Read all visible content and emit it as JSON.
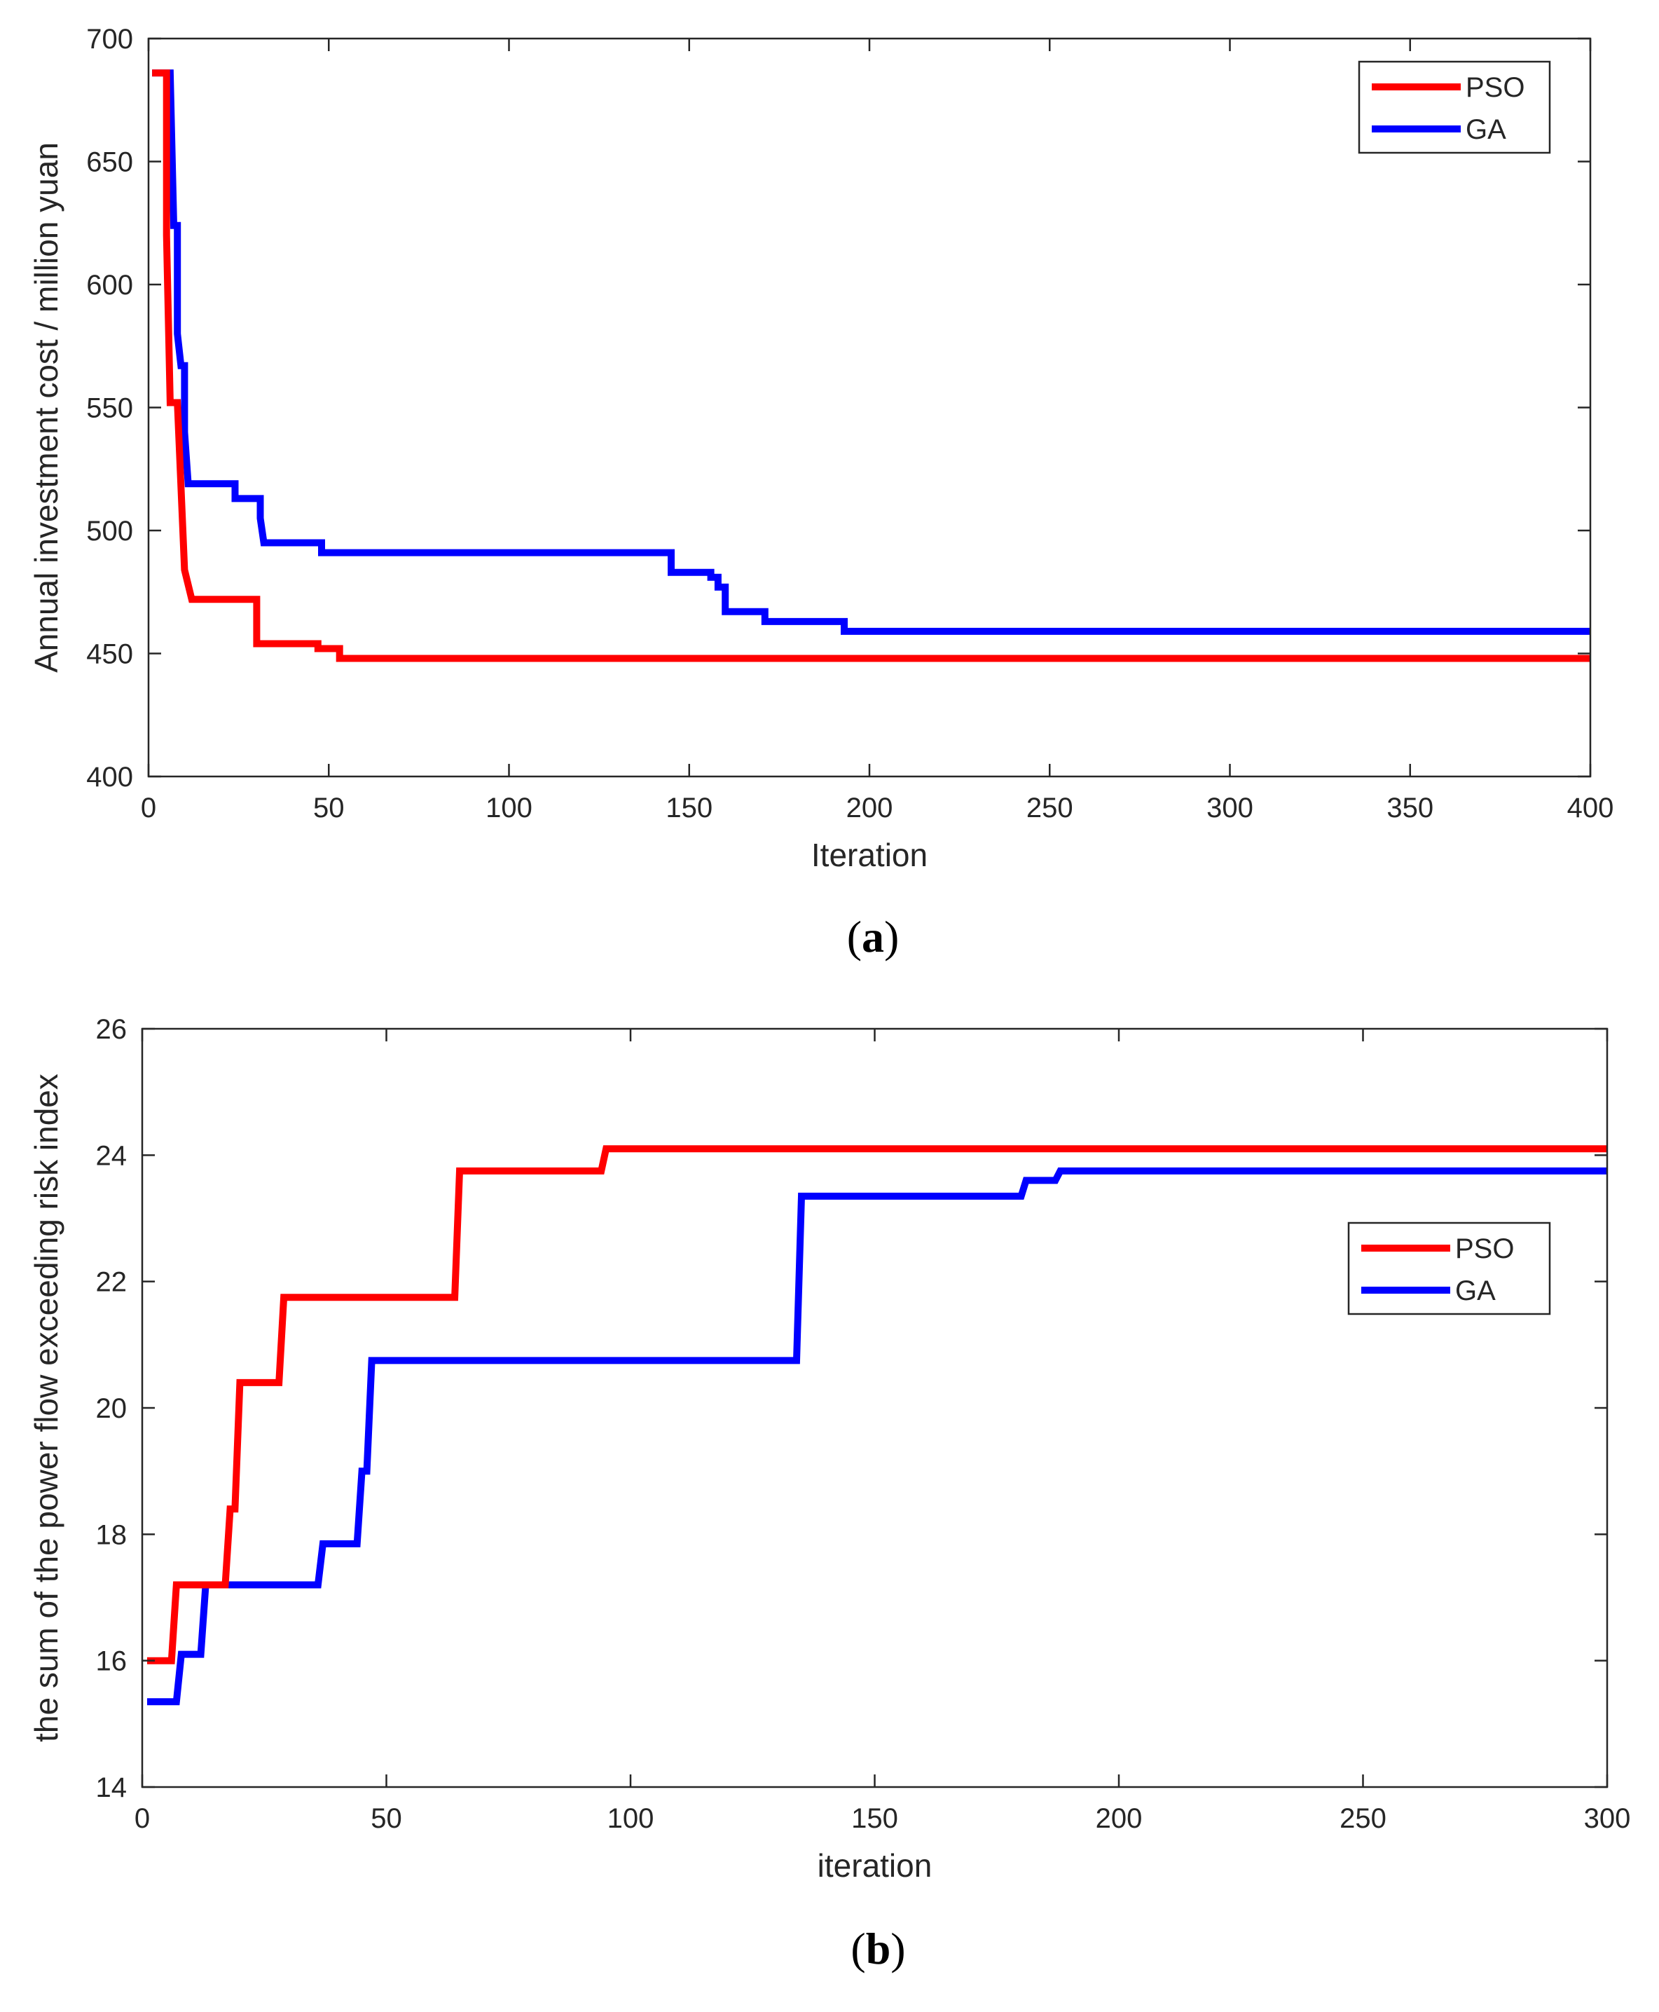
{
  "chart_data": [
    {
      "type": "line",
      "id": "a",
      "caption": {
        "open": "(",
        "letter": "a",
        "close": ")"
      },
      "xlabel": "Iteration",
      "ylabel": "Annual investment cost / million yuan",
      "xlim": [
        0,
        400
      ],
      "ylim": [
        400,
        700
      ],
      "xticks": [
        "0",
        "50",
        "100",
        "150",
        "200",
        "250",
        "300",
        "350",
        "400"
      ],
      "yticks": [
        "400",
        "450",
        "500",
        "550",
        "600",
        "650",
        "700"
      ],
      "legend_position": "top-right",
      "series": [
        {
          "name": "PSO",
          "color": "#ff0000",
          "x": [
            1,
            5,
            5,
            6,
            6,
            8,
            8,
            10,
            10,
            12,
            12,
            30,
            30,
            47,
            47,
            53,
            53,
            400
          ],
          "y": [
            686,
            686,
            620,
            552,
            552,
            552,
            552,
            484,
            484,
            472,
            472,
            472,
            454,
            454,
            452,
            452,
            448,
            448
          ]
        },
        {
          "name": "GA",
          "color": "#0000ff",
          "x": [
            1,
            6,
            7,
            8,
            8,
            9,
            9,
            10,
            10,
            11,
            11,
            24,
            24,
            31,
            31,
            32,
            32,
            48,
            48,
            145,
            145,
            156,
            156,
            158,
            158,
            160,
            160,
            162,
            162,
            171,
            171,
            193,
            193,
            400
          ],
          "y": [
            686,
            686,
            624,
            624,
            580,
            567,
            567,
            567,
            540,
            519,
            519,
            519,
            513,
            513,
            505,
            495,
            495,
            495,
            491,
            491,
            483,
            483,
            481,
            481,
            477,
            477,
            467,
            467,
            467,
            467,
            463,
            463,
            459,
            459
          ]
        }
      ]
    },
    {
      "type": "line",
      "id": "b",
      "caption": {
        "open": "(",
        "letter": "b",
        "close": ")"
      },
      "xlabel": "iteration",
      "ylabel": "the sum of the power flow exceeding risk index",
      "xlim": [
        0,
        300
      ],
      "ylim": [
        14,
        26
      ],
      "xticks": [
        "0",
        "50",
        "100",
        "150",
        "200",
        "250",
        "300"
      ],
      "yticks": [
        "14",
        "16",
        "18",
        "20",
        "22",
        "24",
        "26"
      ],
      "legend_position": "right",
      "series": [
        {
          "name": "PSO",
          "color": "#ff0000",
          "x": [
            1,
            6,
            7,
            17,
            18,
            19,
            20,
            21,
            28,
            29,
            64,
            65,
            94,
            95,
            300
          ],
          "y": [
            16.0,
            16.0,
            17.2,
            17.2,
            18.4,
            18.4,
            20.4,
            20.4,
            20.4,
            21.75,
            21.75,
            23.75,
            23.75,
            24.1,
            24.1
          ]
        },
        {
          "name": "GA",
          "color": "#0000ff",
          "x": [
            1,
            7,
            8,
            12,
            13,
            36,
            37,
            44,
            45,
            46,
            47,
            48,
            134,
            135,
            180,
            181,
            187,
            188,
            300
          ],
          "y": [
            15.35,
            15.35,
            16.1,
            16.1,
            17.2,
            17.2,
            17.85,
            17.85,
            19.0,
            19.0,
            20.75,
            20.75,
            20.75,
            23.35,
            23.35,
            23.6,
            23.6,
            23.75,
            23.75
          ]
        }
      ]
    }
  ]
}
